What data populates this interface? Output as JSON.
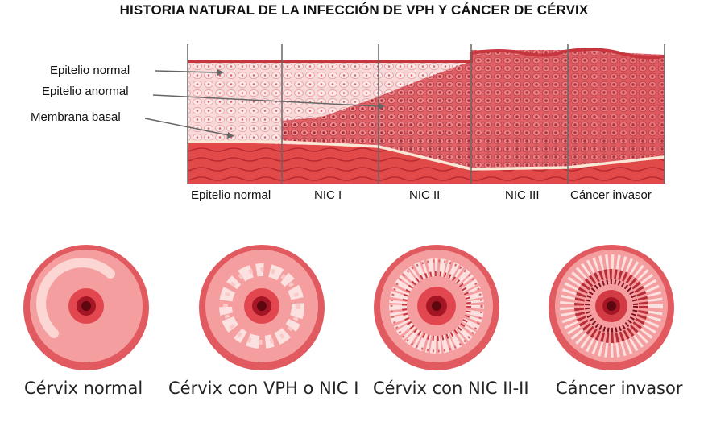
{
  "title": "HISTORIA NATURAL DE LA INFECCIÓN DE VPH Y CÁNCER DE CÉRVIX",
  "tissue_labels": [
    "Epitelio normal",
    "Epitelio anormal",
    "Membrana basal"
  ],
  "stages": [
    "Epitelio normal",
    "NIC I",
    "NIC II",
    "NIC III",
    "Cáncer invasor"
  ],
  "cervix_captions": [
    "Cérvix normal",
    "Cérvix con VPH o NIC I",
    "Cérvix con NIC II-II",
    "Cáncer invasor"
  ],
  "colors": {
    "tissue_light": "#f6d3d3",
    "tissue_abnormal": "#d8474f",
    "stroma": "#e04848",
    "cervix_rim": "#e05a60",
    "cervix_face": "#f7a5a5",
    "os_dark": "#8e0e1a"
  }
}
